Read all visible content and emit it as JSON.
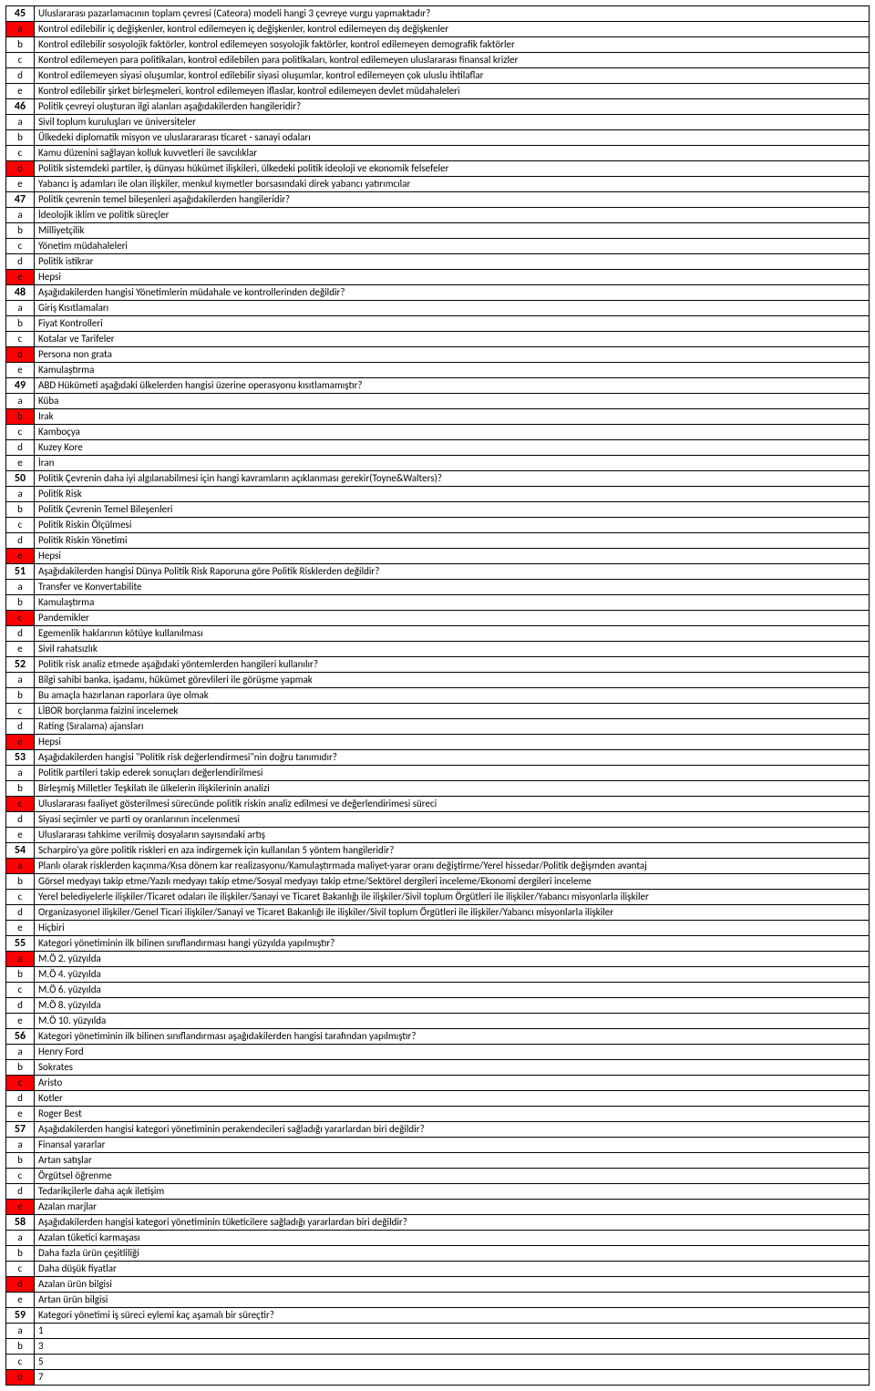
{
  "colors": {
    "correct_bg": "#ff0000",
    "border": "#000000",
    "text": "#000000",
    "bg": "#ffffff"
  },
  "font": {
    "family": "Calibri",
    "size": 11,
    "question_weight": "normal"
  },
  "questions": [
    {
      "num": "45",
      "text": "Uluslararası pazarlamacının toplam çevresi (Cateora) modeli hangi 3 çevreye vurgu yapmaktadır?",
      "options": [
        {
          "l": "a",
          "t": "Kontrol edilebilir iç değişkenler, kontrol edilemeyen iç değişkenler, kontrol edilemeyen dış değişkenler",
          "c": true
        },
        {
          "l": "b",
          "t": "Kontrol edilebilir sosyolojik faktörler, kontrol edilemeyen sosyolojik faktörler, kontrol edilemeyen demografik faktörler",
          "c": false
        },
        {
          "l": "c",
          "t": "Kontrol edilemeyen para politikaları, kontrol edilebilen para politikaları, kontrol edilemeyen uluslararası finansal krizler",
          "c": false
        },
        {
          "l": "d",
          "t": "Kontrol edilemeyen siyasi oluşumlar, kontrol edilebilir siyasi oluşumlar, kontrol edilemeyen çok uluslu ihtilaflar",
          "c": false
        },
        {
          "l": "e",
          "t": "Kontrol edilebilir şirket birleşmeleri, kontrol edilemeyen iflaslar, kontrol edilemeyen devlet müdahaleleri",
          "c": false
        }
      ]
    },
    {
      "num": "46",
      "text": "Politik çevreyi oluşturan ilgi alanları aşağıdakilerden hangileridir?",
      "options": [
        {
          "l": "a",
          "t": "Sivil toplum kuruluşları ve üniversiteler",
          "c": false
        },
        {
          "l": "b",
          "t": "Ülkedeki diplomatik misyon ve uluslarararası ticaret - sanayi odaları",
          "c": false
        },
        {
          "l": "c",
          "t": "Kamu düzenini sağlayan kolluk kuvvetleri ile savcılıklar",
          "c": false
        },
        {
          "l": "d",
          "t": "Politik sistemdeki partiler, iş dünyası hükümet ilişkileri, ülkedeki politik ideoloji ve ekonomik felsefeler",
          "c": true
        },
        {
          "l": "e",
          "t": "Yabancı iş adamları ile olan ilişkiler, menkul kıymetler borsasındaki direk yabancı yatırımcılar",
          "c": false
        }
      ]
    },
    {
      "num": "47",
      "text": "Politik çevrenin temel bileşenleri aşağıdakilerden hangileridir?",
      "options": [
        {
          "l": "a",
          "t": "İdeolojik iklim ve politik süreçler",
          "c": false
        },
        {
          "l": "b",
          "t": "Milliyetçilik",
          "c": false
        },
        {
          "l": "c",
          "t": "Yönetim müdahaleleri",
          "c": false
        },
        {
          "l": "d",
          "t": "Politik istikrar",
          "c": false
        },
        {
          "l": "e",
          "t": "Hepsi",
          "c": true
        }
      ]
    },
    {
      "num": "48",
      "text": "Aşağıdakilerden hangisi Yönetimlerin müdahale ve kontrollerinden değildir?",
      "options": [
        {
          "l": "a",
          "t": "Giriş Kısıtlamaları",
          "c": false
        },
        {
          "l": "b",
          "t": "Fiyat Kontrolleri",
          "c": false
        },
        {
          "l": "c",
          "t": "Kotalar ve Tarifeler",
          "c": false
        },
        {
          "l": "d",
          "t": "Persona non grata",
          "c": true
        },
        {
          "l": "e",
          "t": "Kamulaştırma",
          "c": false
        }
      ]
    },
    {
      "num": "49",
      "text": "ABD Hükümeti aşağıdaki ülkelerden hangisi üzerine operasyonu kısıtlamamıştır?",
      "options": [
        {
          "l": "a",
          "t": "Küba",
          "c": false
        },
        {
          "l": "b",
          "t": "Irak",
          "c": true
        },
        {
          "l": "c",
          "t": "Kamboçya",
          "c": false
        },
        {
          "l": "d",
          "t": "Kuzey Kore",
          "c": false
        },
        {
          "l": "e",
          "t": "İran",
          "c": false
        }
      ]
    },
    {
      "num": "50",
      "text": "Politik Çevrenin daha iyi algılanabilmesi için hangi kavramların açıklanması gerekir(Toyne&Walters)?",
      "options": [
        {
          "l": "a",
          "t": "Politik Risk",
          "c": false
        },
        {
          "l": "b",
          "t": "Politik Çevrenin Temel Bileşenleri",
          "c": false
        },
        {
          "l": "c",
          "t": "Politik Riskin Ölçülmesi",
          "c": false
        },
        {
          "l": "d",
          "t": "Politik Riskin Yönetimi",
          "c": false
        },
        {
          "l": "e",
          "t": "Hepsi",
          "c": true
        }
      ]
    },
    {
      "num": "51",
      "text": "Aşağıdakilerden hangisi Dünya Politik Risk Raporuna göre Politik Risklerden değildir?",
      "options": [
        {
          "l": "a",
          "t": "Transfer ve Konvertabilite",
          "c": false
        },
        {
          "l": "b",
          "t": "Kamulaştırma",
          "c": false
        },
        {
          "l": "c",
          "t": "Pandemikler",
          "c": true
        },
        {
          "l": "d",
          "t": "Egemenlik haklarının kötüye kullanılması",
          "c": false
        },
        {
          "l": "e",
          "t": "Sivil rahatsızlık",
          "c": false
        }
      ]
    },
    {
      "num": "52",
      "text": "Politik risk analiz etmede aşağıdaki yöntemlerden hangileri kullanılır?",
      "options": [
        {
          "l": "a",
          "t": "Bilgi sahibi banka, işadamı, hükümet görevlileri ile görüşme yapmak",
          "c": false
        },
        {
          "l": "b",
          "t": "Bu amaçla hazırlanan raporlara üye olmak",
          "c": false
        },
        {
          "l": "c",
          "t": "LİBOR borçlanma faizini incelemek",
          "c": false
        },
        {
          "l": "d",
          "t": "Rating (Sıralama) ajansları",
          "c": false
        },
        {
          "l": "e",
          "t": "Hepsi",
          "c": true
        }
      ]
    },
    {
      "num": "53",
      "text": "Aşağıdakilerden hangisi \"Politik risk değerlendirmesi\"nin doğru tanımıdır?",
      "options": [
        {
          "l": "a",
          "t": "Politik partileri takip ederek sonuçları değerlendirilmesi",
          "c": false
        },
        {
          "l": "b",
          "t": "Birleşmiş Milletler Teşkilatı ile ülkelerin ilişkilerinin analizi",
          "c": false
        },
        {
          "l": "c",
          "t": "Uluslararası faaliyet gösterilmesi sürecünde politik riskin analiz edilmesi ve değerlendirimesi süreci",
          "c": true
        },
        {
          "l": "d",
          "t": "Siyasi seçimler ve parti oy oranlarının incelenmesi",
          "c": false
        },
        {
          "l": "e",
          "t": "Uluslararası tahkime verilmiş dosyaların sayısındaki artış",
          "c": false
        }
      ]
    },
    {
      "num": "54",
      "text": "Scharpiro'ya göre politik riskleri en aza indirgemek için kullanılan 5 yöntem hangileridir?",
      "options": [
        {
          "l": "a",
          "t": "Planlı olarak risklerden kaçınma/Kısa dönem kar realizasyonu/Kamulaştırmada maliyet-yarar oranı değiştirme/Yerel hissedar/Politik değişmden avantaj",
          "c": true
        },
        {
          "l": "b",
          "t": "Görsel medyayı takip etme/Yazılı medyayı takip etme/Sosyal medyayı takip etme/Sektörel dergileri inceleme/Ekonomi dergileri inceleme",
          "c": false
        },
        {
          "l": "c",
          "t": "Yerel belediyelerle ilişkiler/Ticaret odaları ile ilişkiler/Sanayi ve Ticaret Bakanlığı ile ilişkiler/Sivil toplum Örgütleri ile ilişkiler/Yabancı misyonlarla ilişkiler",
          "c": false
        },
        {
          "l": "d",
          "t": "Organizasyonel ilişkiler/Genel Ticari ilişkiler/Sanayi ve Ticaret Bakanlığı ile ilişkiler/Sivil toplum Örgütleri ile ilişkiler/Yabancı misyonlarla ilişkiler",
          "c": false
        },
        {
          "l": "e",
          "t": "Hiçbiri",
          "c": false
        }
      ]
    },
    {
      "num": "55",
      "text": "Kategori yönetiminin ilk bilinen sınıflandırması hangi yüzyılda yapılmıştır?",
      "options": [
        {
          "l": "a",
          "t": "M.Ö 2. yüzyılda",
          "c": true
        },
        {
          "l": "b",
          "t": "M.Ö 4. yüzyılda",
          "c": false
        },
        {
          "l": "c",
          "t": "M.Ö 6. yüzyılda",
          "c": false
        },
        {
          "l": "d",
          "t": "M.Ö 8. yüzyılda",
          "c": false
        },
        {
          "l": "e",
          "t": "M.Ö 10. yüzyılda",
          "c": false
        }
      ]
    },
    {
      "num": "56",
      "text": "Kategori yönetiminin ilk bilinen sınıflandırması aşağıdakilerden hangisi tarafından yapılmıştır?",
      "options": [
        {
          "l": "a",
          "t": "Henry Ford",
          "c": false
        },
        {
          "l": "b",
          "t": "Sokrates",
          "c": false
        },
        {
          "l": "c",
          "t": "Aristo",
          "c": true
        },
        {
          "l": "d",
          "t": "Kotler",
          "c": false
        },
        {
          "l": "e",
          "t": "Roger Best",
          "c": false
        }
      ]
    },
    {
      "num": "57",
      "text": "Aşağıdakilerden hangisi kategori yönetiminin perakendecileri sağladığı yararlardan biri değildir?",
      "options": [
        {
          "l": "a",
          "t": "Finansal yararlar",
          "c": false
        },
        {
          "l": "b",
          "t": "Artan satışlar",
          "c": false
        },
        {
          "l": "c",
          "t": "Örgütsel öğrenme",
          "c": false
        },
        {
          "l": "d",
          "t": "Tedarikçilerle daha açık iletişim",
          "c": false
        },
        {
          "l": "e",
          "t": "Azalan marjlar",
          "c": true
        }
      ]
    },
    {
      "num": "58",
      "text": "Aşağıdakilerden hangisi kategori yönetiminin tüketicilere sağladığı yararlardan biri değildir?",
      "options": [
        {
          "l": "a",
          "t": "Azalan tüketici karmaşası",
          "c": false
        },
        {
          "l": "b",
          "t": "Daha fazla ürün çeşitliliği",
          "c": false
        },
        {
          "l": "c",
          "t": "Daha düşük fiyatlar",
          "c": false
        },
        {
          "l": "d",
          "t": "Azalan ürün bilgisi",
          "c": true
        },
        {
          "l": "e",
          "t": "Artan ürün bilgisi",
          "c": false
        }
      ]
    },
    {
      "num": "59",
      "text": "Kategori yönetimi iş süreci eylemi kaç aşamalı bir süreçtir?",
      "options": [
        {
          "l": "a",
          "t": "1",
          "c": false
        },
        {
          "l": "b",
          "t": "3",
          "c": false
        },
        {
          "l": "c",
          "t": "5",
          "c": false
        },
        {
          "l": "d",
          "t": "7",
          "c": true
        }
      ]
    }
  ]
}
